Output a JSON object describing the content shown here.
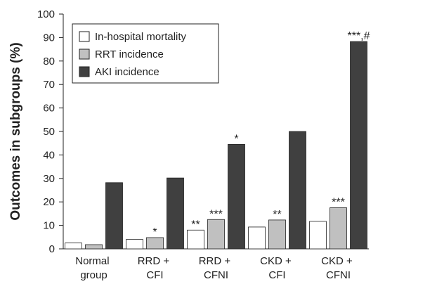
{
  "chart_data": {
    "type": "bar",
    "y_label": "Outcomes in subgroups (%)",
    "categories": [
      "Normal group",
      "RRD + CFI",
      "RRD + CFNI",
      "CKD + CFI",
      "CKD + CFNI"
    ],
    "series": [
      {
        "name": "In-hospital mortality",
        "color": "#ffffff",
        "values": [
          2.5,
          4,
          8,
          9.3,
          11.7
        ],
        "annotations": [
          null,
          null,
          "**",
          null,
          null
        ]
      },
      {
        "name": "RRT incidence",
        "color": "#c0c0c0",
        "values": [
          1.8,
          4.8,
          12.5,
          12.3,
          17.5
        ],
        "annotations": [
          null,
          "*",
          "***",
          "**",
          "***"
        ]
      },
      {
        "name": "AKI incidence",
        "color": "#404040",
        "values": [
          28.2,
          30.2,
          44.5,
          50,
          88.3
        ],
        "annotations": [
          null,
          null,
          "*",
          null,
          "***,#"
        ]
      }
    ],
    "ylim": [
      0,
      100
    ],
    "yticks": [
      0,
      10,
      20,
      30,
      40,
      50,
      60,
      70,
      80,
      90,
      100
    ],
    "grid": false,
    "legend": "top-left"
  }
}
